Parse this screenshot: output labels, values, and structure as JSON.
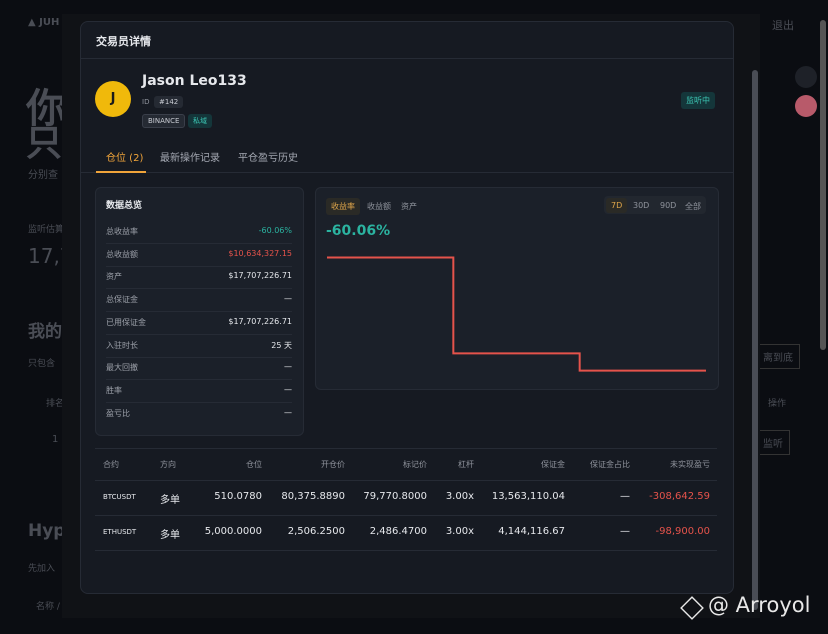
{
  "background": {
    "brand": "JUH",
    "logout": "退出",
    "hero_line1": "你",
    "hero_line2": "只",
    "hero_sub": "分别查",
    "est_label": "监听估算",
    "est_value": "17,7",
    "my_title": "我的",
    "my_sub": "只包含",
    "col_rank": "排名",
    "row_rank": "1",
    "col_action": "操作",
    "btn_bottom": "离到底",
    "btn_listen": "监听",
    "hype_title": "Hype",
    "hype_sub": "先加入",
    "hype_col": "名称 / 地"
  },
  "watermark": "@ Arroyol",
  "modal": {
    "title": "交易员详情",
    "trader": {
      "avatar": "J",
      "name": "Jason Leo133",
      "id_label": "ID",
      "id": "#142",
      "tags": [
        "BINANCE",
        "私域"
      ],
      "status": "监听中"
    },
    "tabs": [
      "仓位 (2)",
      "最新操作记录",
      "平仓盈亏历史"
    ],
    "overview": {
      "title": "数据总览",
      "rows": [
        [
          "总收益率",
          "-60.06%"
        ],
        [
          "总收益额",
          "$10,634,327.15"
        ],
        [
          "资产",
          "$17,707,226.71"
        ],
        [
          "总保证金",
          "—"
        ],
        [
          "已用保证金",
          "$17,707,226.71"
        ],
        [
          "入驻时长",
          "25 天"
        ],
        [
          "最大回撤",
          "—"
        ],
        [
          "胜率",
          "—"
        ],
        [
          "盈亏比",
          "—"
        ]
      ]
    },
    "chart_tabs": [
      "收益率",
      "收益额",
      "资产"
    ],
    "range_tabs": [
      "7D",
      "30D",
      "90D",
      "全部"
    ],
    "headline": "-60.06%",
    "table": {
      "header": [
        "合约",
        "方向",
        "仓位",
        "开仓价",
        "标记价",
        "杠杆",
        "保证金",
        "保证金占比",
        "未实现盈亏"
      ],
      "rows": [
        [
          "BTCUSDT",
          "多单",
          "510.0780",
          "80,375.8890",
          "79,770.8000",
          "3.00x",
          "13,563,110.04",
          "—",
          "-308,642.59"
        ],
        [
          "ETHUSDT",
          "多单",
          "5,000.0000",
          "2,506.2500",
          "2,486.4700",
          "3.00x",
          "4,144,116.67",
          "—",
          "-98,900.00"
        ]
      ]
    }
  },
  "chart_data": {
    "type": "line",
    "step": true,
    "color": "#e5534b",
    "categories": [
      null,
      null,
      null,
      null,
      null,
      null,
      null,
      null,
      null,
      null
    ],
    "values": [
      0,
      0,
      0,
      -50.9,
      -50.9,
      -50.9,
      -60.06,
      -60.06,
      -60.06,
      -60.06
    ],
    "ylim": [
      -64,
      4
    ]
  }
}
